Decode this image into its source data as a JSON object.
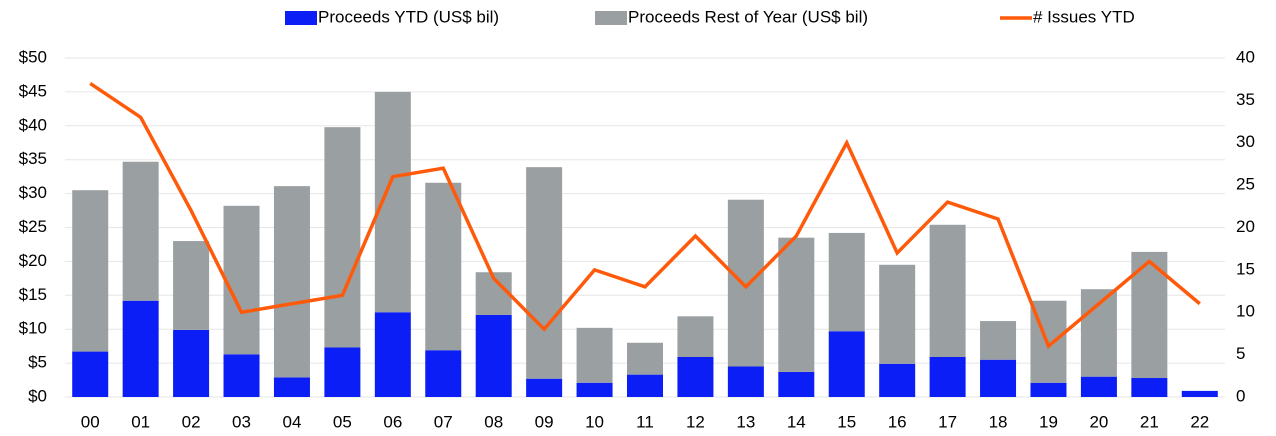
{
  "chart_data": {
    "type": "bar_line",
    "categories": [
      "00",
      "01",
      "02",
      "03",
      "04",
      "05",
      "06",
      "07",
      "08",
      "09",
      "10",
      "11",
      "12",
      "13",
      "14",
      "15",
      "16",
      "17",
      "18",
      "19",
      "20",
      "21",
      "22"
    ],
    "series": [
      {
        "name": "Proceeds YTD (US$ bil)",
        "color": "#0a1ef5",
        "type": "bar",
        "values": [
          6.7,
          14.2,
          9.9,
          6.3,
          2.9,
          7.3,
          12.5,
          6.9,
          12.1,
          2.7,
          2.1,
          3.3,
          5.9,
          4.5,
          3.7,
          9.7,
          4.9,
          5.9,
          5.5,
          2.1,
          3.0,
          2.8,
          0.9
        ]
      },
      {
        "name": "Proceeds Rest of Year (US$ bil)",
        "color": "#9a9fa2",
        "type": "bar",
        "values": [
          23.8,
          20.5,
          13.1,
          21.9,
          28.2,
          32.5,
          32.5,
          24.7,
          6.3,
          31.2,
          8.1,
          4.7,
          6.0,
          24.6,
          19.8,
          14.5,
          14.6,
          19.5,
          5.7,
          12.1,
          12.9,
          18.6,
          null
        ]
      },
      {
        "name": "# Issues YTD",
        "color": "#ff5a0a",
        "type": "line",
        "axis": "y2",
        "values": [
          37,
          33,
          22,
          10,
          11,
          12,
          26,
          27,
          14,
          8,
          15,
          13,
          19,
          13,
          19,
          30,
          17,
          23,
          21,
          6,
          11,
          16,
          11
        ]
      }
    ],
    "ylim": [
      0,
      50
    ],
    "yticks": [
      {
        "value": 0,
        "label": "$0"
      },
      {
        "value": 5,
        "label": "$5"
      },
      {
        "value": 10,
        "label": "$10"
      },
      {
        "value": 15,
        "label": "$15"
      },
      {
        "value": 20,
        "label": "$20"
      },
      {
        "value": 25,
        "label": "$25"
      },
      {
        "value": 30,
        "label": "$30"
      },
      {
        "value": 35,
        "label": "$35"
      },
      {
        "value": 40,
        "label": "$40"
      },
      {
        "value": 45,
        "label": "$45"
      },
      {
        "value": 50,
        "label": "$50"
      }
    ],
    "y2lim": [
      0,
      40
    ],
    "y2ticks": [
      0,
      5,
      10,
      15,
      20,
      25,
      30,
      35,
      40
    ],
    "grid": true,
    "legend": "top"
  }
}
